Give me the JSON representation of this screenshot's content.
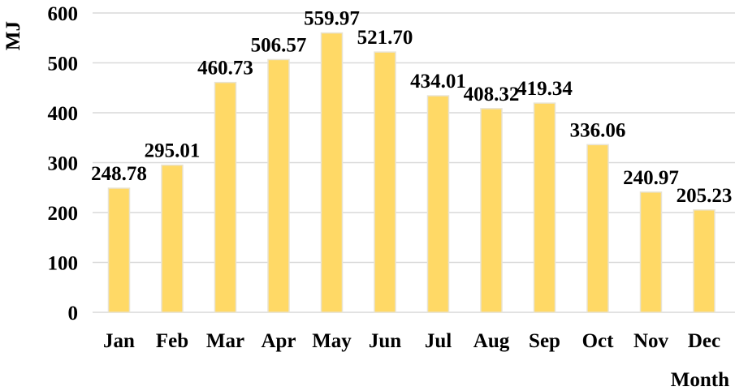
{
  "chart_data": {
    "type": "bar",
    "title": "",
    "xlabel": "Month",
    "ylabel": "MJ",
    "categories": [
      "Jan",
      "Feb",
      "Mar",
      "Apr",
      "May",
      "Jun",
      "Jul",
      "Aug",
      "Sep",
      "Oct",
      "Nov",
      "Dec"
    ],
    "values": [
      248.78,
      295.01,
      460.73,
      506.57,
      559.97,
      521.7,
      434.01,
      408.32,
      419.34,
      336.06,
      240.97,
      205.23
    ],
    "value_labels": [
      "248.78",
      "295.01",
      "460.73",
      "506.57",
      "559.97",
      "521.70",
      "434.01",
      "408.32",
      "419.34",
      "336.06",
      "240.97",
      "205.23"
    ],
    "y_ticks": [
      "0",
      "100",
      "200",
      "300",
      "400",
      "500",
      "600"
    ],
    "ylim": [
      0,
      600
    ],
    "grid": true,
    "legend": "none",
    "colors": {
      "bar_fill": "#FFD966",
      "bar_edge": "#E8E3D2",
      "grid": "#D9D9D9"
    }
  }
}
